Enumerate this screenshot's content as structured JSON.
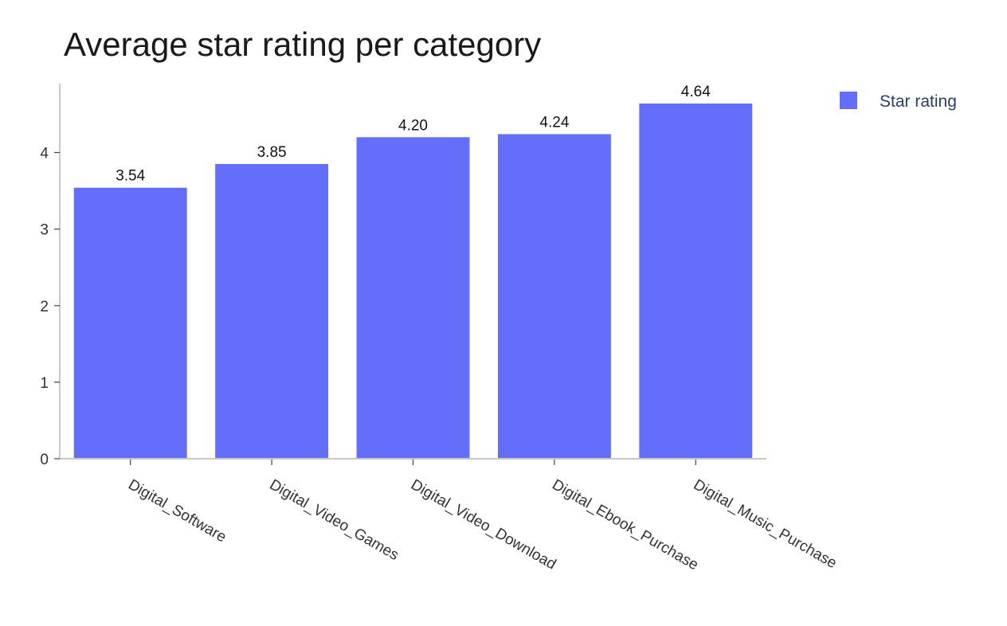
{
  "chart_data": {
    "type": "bar",
    "title": "Average star rating per category",
    "xlabel": "",
    "ylabel": "",
    "categories": [
      "Digital_Software",
      "Digital_Video_Games",
      "Digital_Video_Download",
      "Digital_Ebook_Purchase",
      "Digital_Music_Purchase"
    ],
    "series": [
      {
        "name": "Star rating",
        "values": [
          3.54,
          3.85,
          4.2,
          4.24,
          4.64
        ],
        "data_labels": [
          "3.54",
          "3.85",
          "4.20",
          "4.24",
          "4.64"
        ],
        "color": "#636efa"
      }
    ],
    "ylim": [
      0,
      4.9
    ],
    "yticks": [
      0,
      1,
      2,
      3,
      4
    ],
    "ytick_labels": [
      "0",
      "1",
      "2",
      "3",
      "4"
    ],
    "grid": false,
    "legend_position": "top-right",
    "xtick_rotation": "angled"
  }
}
